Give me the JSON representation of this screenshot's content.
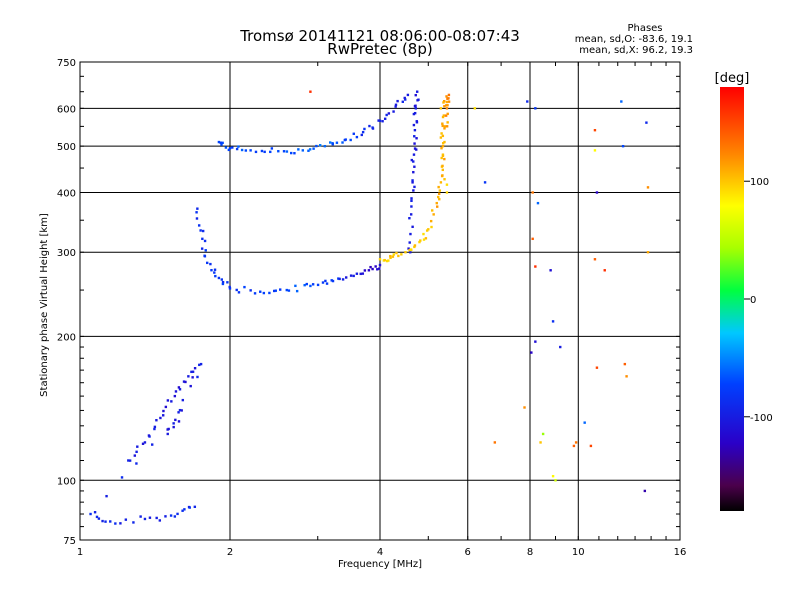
{
  "chart_data": {
    "type": "scatter",
    "title": "Tromsø 20141121 08:06:00-08:07:43",
    "subtitle": "RwPretec (8p)",
    "xlabel": "Frequency [MHz]",
    "ylabel": "Stationary phase Virtual Height [km]",
    "x_scale": "log",
    "y_scale": "log",
    "xlim": [
      1,
      16
    ],
    "ylim": [
      75,
      750
    ],
    "x_ticks": [
      1,
      2,
      4,
      6,
      8,
      10,
      16
    ],
    "y_ticks": [
      75,
      100,
      200,
      300,
      400,
      500,
      600,
      750
    ],
    "grid": true,
    "phase_box": {
      "title": "Phases",
      "line_o": "mean, sd,O: -83.6, 19.1",
      "line_x": "mean, sd,X: 96.2, 19.3"
    },
    "colorbar": {
      "label": "[deg]",
      "ticks": [
        100,
        0,
        -100
      ],
      "range": [
        -180,
        180
      ]
    },
    "series": [
      {
        "name": "O-mode",
        "points": [
          [
            1.9,
            510,
            -70
          ],
          [
            2.0,
            495,
            -72
          ],
          [
            2.2,
            490,
            -70
          ],
          [
            2.5,
            488,
            -68
          ],
          [
            2.8,
            490,
            -62
          ],
          [
            3.1,
            500,
            -60
          ],
          [
            3.4,
            515,
            -75
          ],
          [
            3.7,
            535,
            -85
          ],
          [
            4.0,
            565,
            -92
          ],
          [
            4.3,
            605,
            -100
          ],
          [
            4.55,
            640,
            -100
          ],
          [
            4.6,
            300,
            -100
          ],
          [
            4.62,
            360,
            -100
          ],
          [
            4.65,
            420,
            -105
          ],
          [
            4.68,
            480,
            -100
          ],
          [
            4.7,
            540,
            -98
          ],
          [
            4.72,
            600,
            -100
          ],
          [
            4.75,
            650,
            -100
          ],
          [
            1.72,
            370,
            -90
          ],
          [
            1.76,
            320,
            -85
          ],
          [
            1.8,
            285,
            -80
          ],
          [
            1.9,
            265,
            -82
          ],
          [
            2.0,
            252,
            -80
          ],
          [
            2.3,
            248,
            -75
          ],
          [
            2.6,
            250,
            -70
          ],
          [
            2.9,
            255,
            -65
          ],
          [
            3.2,
            262,
            -75
          ],
          [
            3.5,
            268,
            -100
          ],
          [
            3.8,
            275,
            -120
          ],
          [
            4.0,
            282,
            -110
          ],
          [
            1.25,
            110,
            -95
          ],
          [
            1.35,
            120,
            -100
          ],
          [
            1.45,
            135,
            -105
          ],
          [
            1.55,
            150,
            -110
          ],
          [
            1.65,
            165,
            -100
          ],
          [
            1.75,
            175,
            -95
          ],
          [
            1.5,
            125,
            -102
          ],
          [
            1.6,
            140,
            -108
          ],
          [
            1.05,
            85,
            -85
          ],
          [
            1.15,
            82,
            -90
          ],
          [
            1.35,
            83,
            -95
          ],
          [
            1.55,
            84,
            -88
          ],
          [
            1.7,
            88,
            -92
          ]
        ]
      },
      {
        "name": "X-mode",
        "points": [
          [
            4.0,
            290,
            95
          ],
          [
            4.2,
            292,
            100
          ],
          [
            4.5,
            300,
            98
          ],
          [
            4.8,
            315,
            95
          ],
          [
            5.0,
            335,
            100
          ],
          [
            5.2,
            380,
            110
          ],
          [
            5.3,
            420,
            105
          ],
          [
            5.35,
            480,
            100
          ],
          [
            5.4,
            550,
            110
          ],
          [
            5.45,
            600,
            120
          ],
          [
            5.5,
            640,
            130
          ],
          [
            5.3,
            600,
            100
          ],
          [
            5.35,
            500,
            110
          ],
          [
            5.45,
            400,
            95
          ]
        ]
      }
    ],
    "scatter": [
      [
        6.5,
        420,
        -80
      ],
      [
        7.9,
        620,
        -90
      ],
      [
        8.2,
        600,
        -80
      ],
      [
        8.8,
        275,
        -110
      ],
      [
        8.9,
        215,
        -85
      ],
      [
        9.2,
        190,
        -100
      ],
      [
        10.8,
        540,
        150
      ],
      [
        10.8,
        490,
        80
      ],
      [
        10.9,
        400,
        -120
      ],
      [
        10.8,
        290,
        140
      ],
      [
        12.2,
        620,
        -60
      ],
      [
        12.3,
        500,
        -70
      ],
      [
        13.7,
        560,
        -90
      ],
      [
        13.8,
        410,
        120
      ],
      [
        13.8,
        300,
        110
      ],
      [
        8.1,
        400,
        130
      ],
      [
        8.3,
        380,
        -60
      ],
      [
        8.1,
        320,
        140
      ],
      [
        8.2,
        280,
        160
      ],
      [
        8.2,
        195,
        -110
      ],
      [
        8.05,
        185,
        -120
      ],
      [
        7.8,
        142,
        120
      ],
      [
        8.5,
        125,
        40
      ],
      [
        8.4,
        120,
        100
      ],
      [
        9.9,
        120,
        130
      ],
      [
        9.8,
        118,
        140
      ],
      [
        10.6,
        118,
        150
      ],
      [
        10.3,
        132,
        -60
      ],
      [
        12.5,
        165,
        120
      ],
      [
        12.4,
        175,
        140
      ],
      [
        10.9,
        172,
        150
      ],
      [
        11.3,
        275,
        160
      ],
      [
        8.9,
        102,
        80
      ],
      [
        9.0,
        100,
        60
      ],
      [
        6.8,
        120,
        130
      ],
      [
        13.6,
        95,
        -130
      ],
      [
        6.2,
        600,
        90
      ],
      [
        2.9,
        650,
        160
      ]
    ]
  }
}
